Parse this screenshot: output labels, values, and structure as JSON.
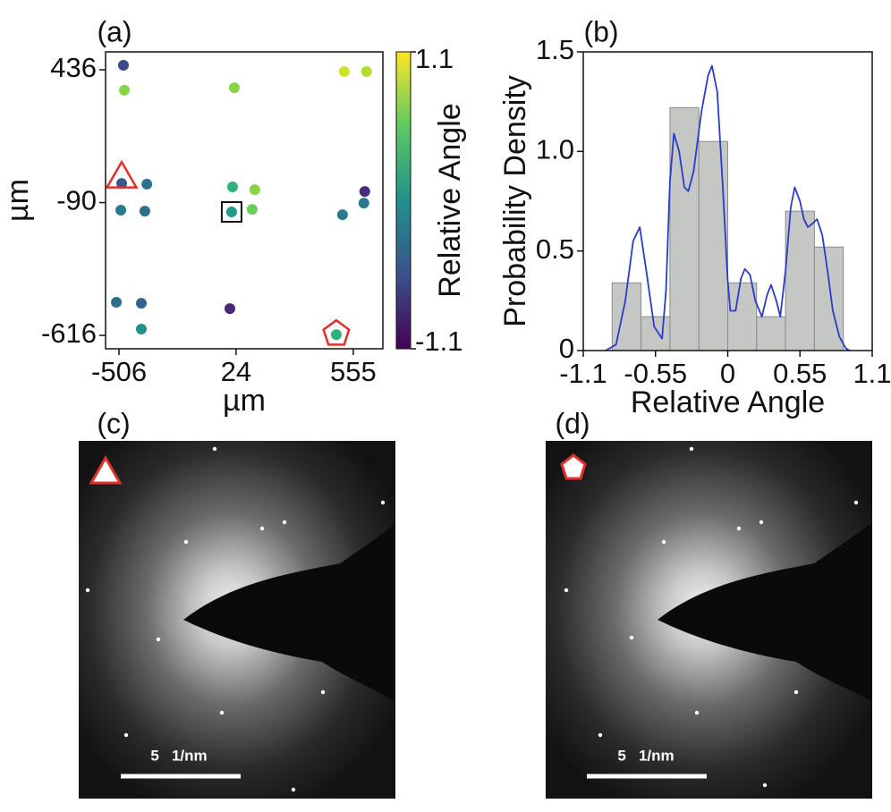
{
  "chart_data": [
    {
      "type": "scatter",
      "title": "(a)",
      "x_label": "µm",
      "y_label": "µm",
      "x": [
        -486,
        -482,
        16,
        514,
        615,
        -494,
        -380,
        -498,
        -389,
        8,
        109,
        4,
        97,
        607,
        603,
        506,
        -518,
        -405,
        -405,
        -4,
        478
      ],
      "y": [
        454,
        355,
        365,
        429,
        429,
        -14,
        -17,
        -120,
        -124,
        -28,
        -39,
        -127,
        -117,
        -46,
        -92,
        -138,
        -485,
        -489,
        -591,
        -510,
        -613
      ],
      "color_values": [
        -0.6,
        0.7,
        0.7,
        0.95,
        0.85,
        -0.5,
        -0.3,
        -0.2,
        -0.3,
        0.3,
        0.7,
        0.1,
        0.6,
        -0.8,
        -0.2,
        -0.2,
        -0.3,
        -0.4,
        0.0,
        -0.85,
        0.3
      ],
      "colormap": "viridis",
      "clim": [
        -1.1,
        1.1
      ],
      "colorbar_label": "Relative Angle",
      "colorbar_ticks": [
        -1.1,
        1.1
      ],
      "xlim": [
        -567,
        689
      ],
      "xticks": [
        -506,
        24,
        555
      ],
      "ylim": [
        -669,
        507
      ],
      "yticks": [
        -616,
        -90,
        436
      ],
      "highlights": [
        {
          "shape": "triangle",
          "index": 5,
          "color": "#e0302a"
        },
        {
          "shape": "square",
          "index": 11,
          "color": "#111111"
        },
        {
          "shape": "pentagon",
          "index": 20,
          "color": "#e0302a"
        }
      ]
    },
    {
      "type": "histogram",
      "title": "(b)",
      "x_label": "Relative Angle",
      "y_label": "Probability Density",
      "bins": [
        -0.88,
        -0.66,
        -0.44,
        -0.22,
        0,
        0.22,
        0.44,
        0.66,
        0.88
      ],
      "values": [
        0.34,
        0.17,
        1.22,
        1.05,
        0.34,
        0.17,
        0.7,
        0.52
      ],
      "color": "#c4c7c4",
      "edge_color": "#8a8d8a",
      "kde": {
        "color": "#2a3cc8",
        "x": [
          -0.93,
          -0.85,
          -0.78,
          -0.72,
          -0.67,
          -0.62,
          -0.56,
          -0.5,
          -0.47,
          -0.44,
          -0.41,
          -0.37,
          -0.33,
          -0.3,
          -0.26,
          -0.2,
          -0.15,
          -0.12,
          -0.08,
          -0.04,
          0,
          0.02,
          0.06,
          0.1,
          0.13,
          0.17,
          0.21,
          0.26,
          0.3,
          0.33,
          0.37,
          0.4,
          0.44,
          0.48,
          0.51,
          0.55,
          0.58,
          0.61,
          0.65,
          0.68,
          0.72,
          0.76,
          0.8,
          0.85,
          0.9,
          0.93
        ],
        "values": [
          0,
          0.03,
          0.25,
          0.55,
          0.62,
          0.4,
          0.12,
          0.06,
          0.3,
          0.85,
          1.09,
          1.0,
          0.82,
          0.8,
          0.9,
          1.2,
          1.38,
          1.43,
          1.3,
          0.85,
          0.35,
          0.2,
          0.2,
          0.36,
          0.41,
          0.38,
          0.25,
          0.17,
          0.28,
          0.33,
          0.25,
          0.17,
          0.4,
          0.72,
          0.82,
          0.75,
          0.66,
          0.62,
          0.64,
          0.66,
          0.58,
          0.4,
          0.2,
          0.07,
          0.01,
          0
        ]
      },
      "xlim": [
        -1.1,
        1.1
      ],
      "xticks": [
        -1.1,
        -0.55,
        0,
        0.55,
        1.1
      ],
      "ylim": [
        0,
        1.5
      ],
      "yticks": [
        0,
        0.5,
        {
          "value": 1,
          "label": "1.0"
        },
        1.5
      ]
    }
  ],
  "images": [
    {
      "label": "(c)",
      "scale_bar": "5   1/nm"
    },
    {
      "label": "(d)",
      "scale_bar": "5   1/nm"
    }
  ]
}
